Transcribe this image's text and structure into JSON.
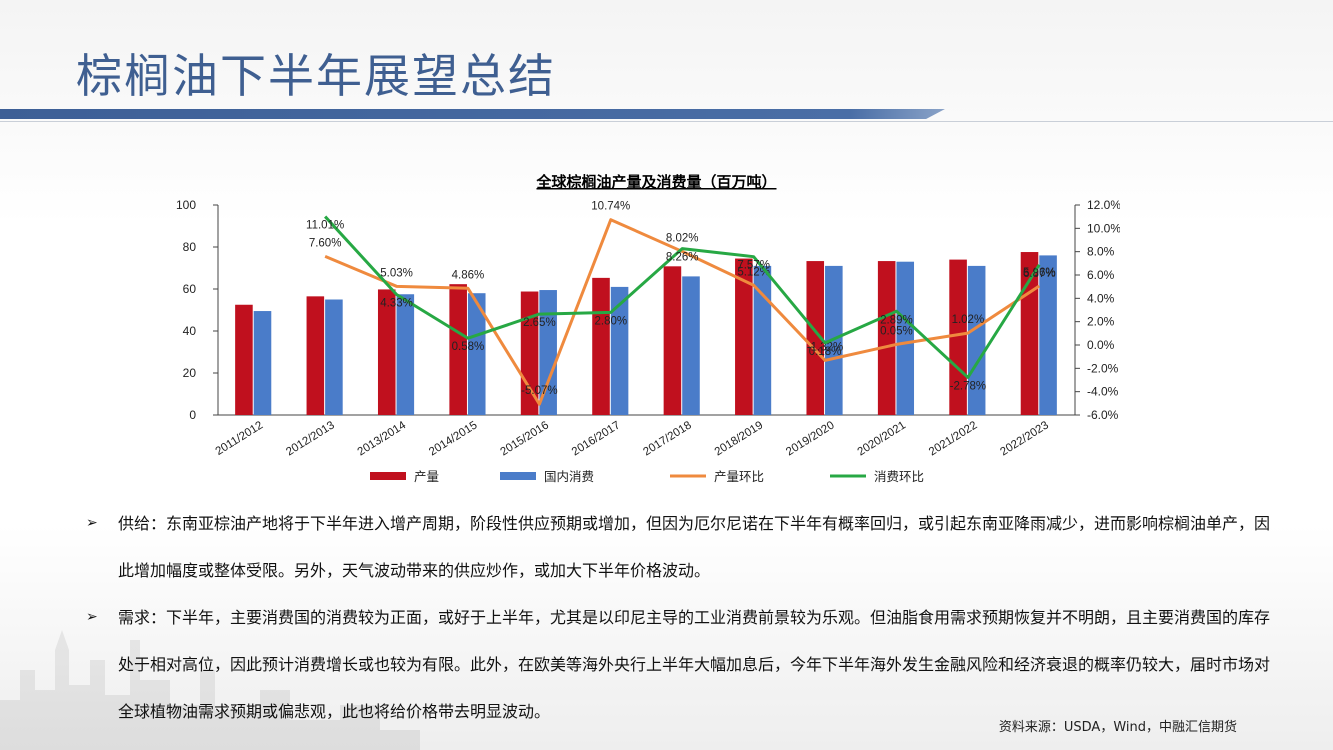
{
  "slide": {
    "title": "棕榈油下半年展望总结"
  },
  "chart_data": {
    "type": "bar+line",
    "title": "全球棕榈油产量及消费量（百万吨）",
    "categories": [
      "2011/2012",
      "2012/2013",
      "2013/2014",
      "2014/2015",
      "2015/2016",
      "2016/2017",
      "2017/2018",
      "2018/2019",
      "2019/2020",
      "2020/2021",
      "2021/2022",
      "2022/2023"
    ],
    "left_axis": {
      "ylim": [
        0,
        100
      ],
      "ticks": [
        0,
        20,
        40,
        60,
        80,
        100
      ]
    },
    "right_axis": {
      "ylim": [
        -6,
        12
      ],
      "ticks": [
        "-6.0%",
        "-4.0%",
        "-2.0%",
        "0.0%",
        "2.0%",
        "4.0%",
        "6.0%",
        "8.0%",
        "10.0%",
        "12.0%"
      ]
    },
    "series": [
      {
        "name": "产量",
        "type": "bar",
        "axis": "left",
        "color": "#c0101e",
        "values": [
          52.5,
          56.5,
          59.8,
          62.3,
          58.8,
          65.3,
          70.8,
          74.5,
          73.3,
          73.3,
          74.0,
          77.6
        ]
      },
      {
        "name": "国内消费",
        "type": "bar",
        "axis": "left",
        "color": "#4a7cc9",
        "values": [
          49.5,
          55.0,
          57.5,
          58.0,
          59.5,
          61.0,
          66.0,
          71.0,
          71.0,
          73.0,
          71.0,
          76.0
        ]
      },
      {
        "name": "产量环比",
        "type": "line",
        "axis": "right",
        "color": "#ef8a3e",
        "values": [
          null,
          7.6,
          5.03,
          4.86,
          -5.07,
          10.74,
          8.02,
          5.12,
          -1.32,
          0.05,
          1.02,
          5.06
        ],
        "labels": [
          "",
          "7.60%",
          "5.03%",
          "4.86%",
          "-5.07%",
          "10.74%",
          "8.02%",
          "5.12%",
          "-1.32%",
          "0.05%",
          "1.02%",
          "5.06%"
        ]
      },
      {
        "name": "消费环比",
        "type": "line",
        "axis": "right",
        "color": "#27a844",
        "values": [
          null,
          11.01,
          4.33,
          0.58,
          2.65,
          2.8,
          8.26,
          7.57,
          0.18,
          2.89,
          -2.78,
          6.87
        ],
        "labels": [
          "",
          "11.01%",
          "4.33%",
          "0.58%",
          "2.65%",
          "2.80%",
          "8.26%",
          "7.57%",
          "0.18%",
          "2.89%",
          "-2.78%",
          "6.87%"
        ]
      }
    ],
    "legend": [
      "产量",
      "国内消费",
      "产量环比",
      "消费环比"
    ],
    "legend_position": "bottom",
    "grid": false
  },
  "bullets": [
    {
      "mark": "➢",
      "text": "供给：东南亚棕油产地将于下半年进入增产周期，阶段性供应预期或增加，但因为厄尔尼诺在下半年有概率回归，或引起东南亚降雨减少，进而影响棕榈油单产，因此增加幅度或整体受限。另外，天气波动带来的供应炒作，或加大下半年价格波动。"
    },
    {
      "mark": "➢",
      "text": "需求：下半年，主要消费国的消费较为正面，或好于上半年，尤其是以印尼主导的工业消费前景较为乐观。但油脂食用需求预期恢复并不明朗，且主要消费国的库存处于相对高位，因此预计消费增长或也较为有限。此外，在欧美等海外央行上半年大幅加息后，今年下半年海外发生金融风险和经济衰退的概率仍较大，届时市场对全球植物油需求预期或偏悲观，此也将给价格带去明显波动。"
    }
  ],
  "source": "资料来源：USDA，Wind，中融汇信期货"
}
